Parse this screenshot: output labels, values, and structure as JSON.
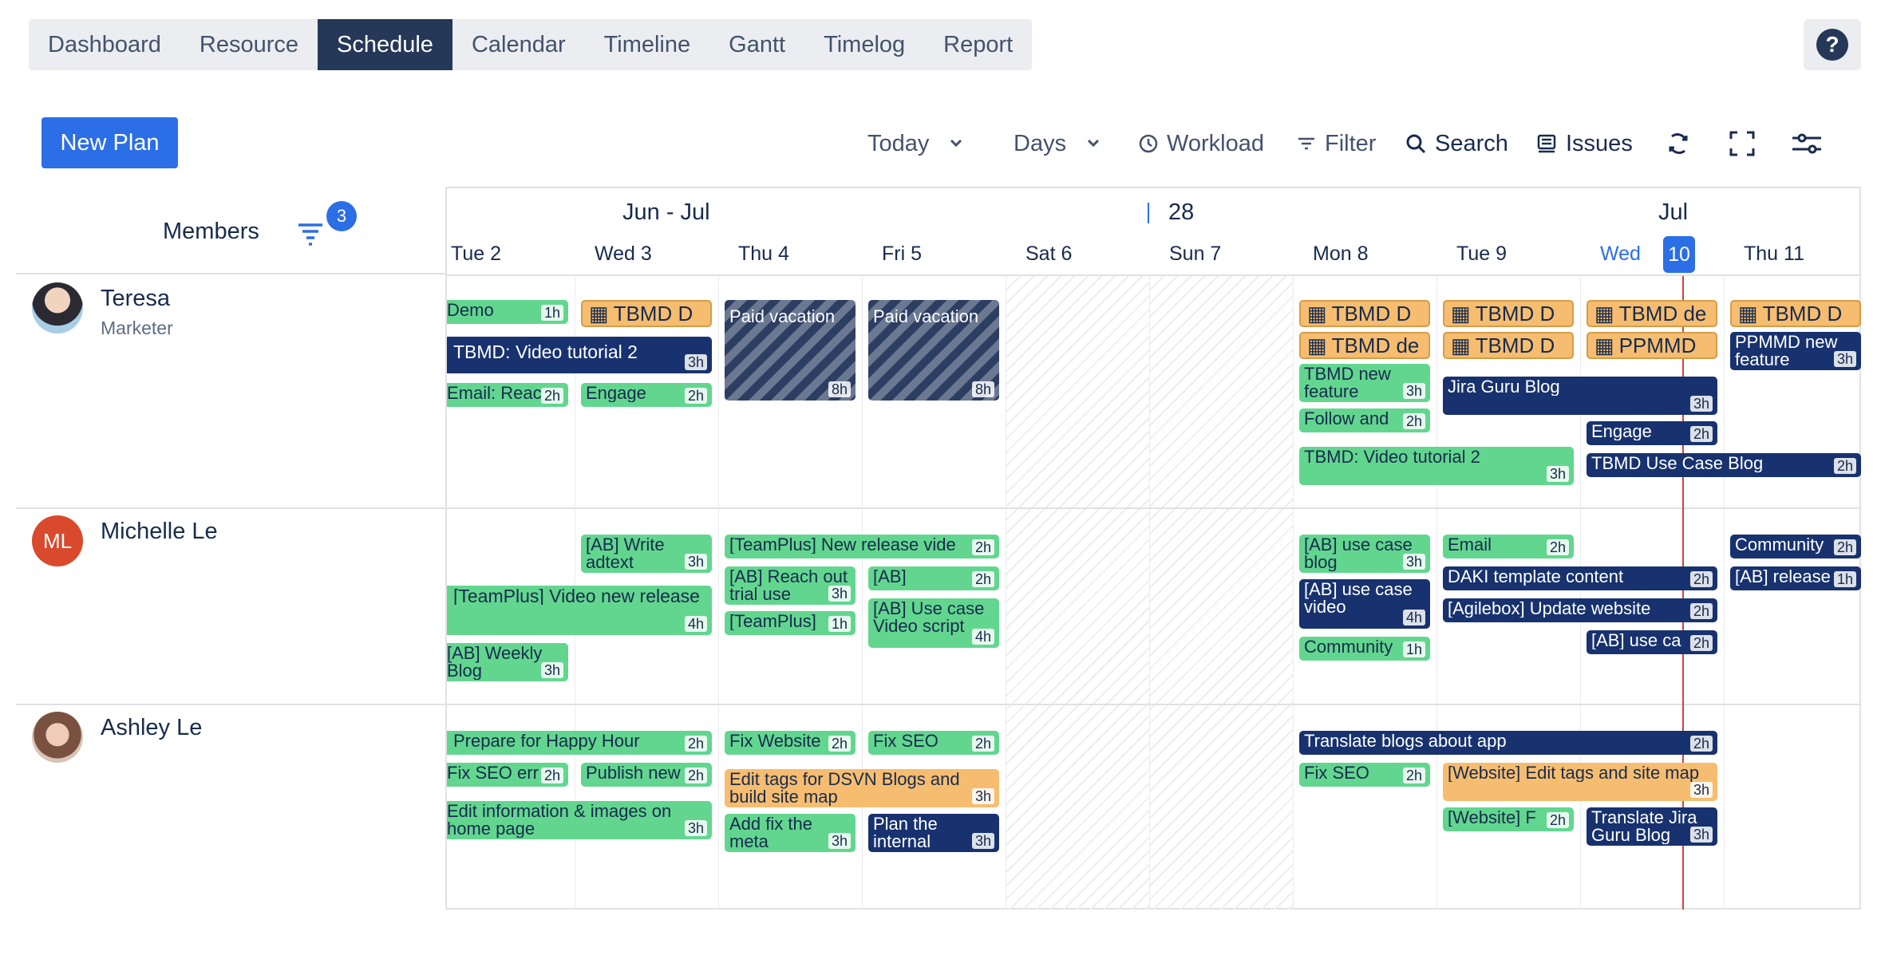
{
  "nav": {
    "tabs": [
      "Dashboard",
      "Resource",
      "Schedule",
      "Calendar",
      "Timeline",
      "Gantt",
      "Timelog",
      "Report"
    ],
    "active_tab": "Schedule",
    "help_label": "?"
  },
  "toolbar": {
    "new_plan": "New Plan",
    "today": "Today",
    "days": "Days",
    "workload": "Workload",
    "filter": "Filter",
    "search": "Search",
    "issues": "Issues"
  },
  "members_panel": {
    "title": "Members",
    "filter_count": "3",
    "members": [
      {
        "name": "Teresa",
        "role": "Marketer",
        "initials": ""
      },
      {
        "name": "Michelle Le",
        "role": "",
        "initials": "ML"
      },
      {
        "name": "Ashley Le",
        "role": "",
        "initials": ""
      }
    ]
  },
  "timeline": {
    "months": [
      "Jun - Jul",
      "28",
      "Jul"
    ],
    "days": [
      "Tue 2",
      "Wed 3",
      "Thu 4",
      "Fri 5",
      "Sat 6",
      "Sun 7",
      "Mon 8",
      "Tue 9",
      "Wed",
      "Thu 11"
    ],
    "today_number": "10"
  },
  "events": {
    "teresa": [
      {
        "title": "Demo",
        "dur": "1h"
      },
      {
        "title": "TBMD D",
        "dur": ""
      },
      {
        "title": "TBMD: Video tutorial 2",
        "dur": "3h"
      },
      {
        "title": "Email: Reac",
        "dur": "2h"
      },
      {
        "title": "Engage",
        "dur": "2h"
      },
      {
        "title": "Paid vacation",
        "dur": "8h"
      },
      {
        "title": "Paid vacation",
        "dur": "8h"
      },
      {
        "title": "TBMD D",
        "dur": ""
      },
      {
        "title": "TBMD de",
        "dur": ""
      },
      {
        "title": "TBMD new feature",
        "dur": "3h"
      },
      {
        "title": "Follow and",
        "dur": "2h"
      },
      {
        "title": "TBMD: Video tutorial 2",
        "dur": "3h"
      },
      {
        "title": "TBMD D",
        "dur": ""
      },
      {
        "title": "TBMD D",
        "dur": ""
      },
      {
        "title": "Jira Guru Blog",
        "dur": "3h"
      },
      {
        "title": "TBMD de",
        "dur": ""
      },
      {
        "title": "PPMMD",
        "dur": ""
      },
      {
        "title": "Engage",
        "dur": "2h"
      },
      {
        "title": "TBMD Use Case Blog",
        "dur": "2h"
      },
      {
        "title": "TBMD D",
        "dur": ""
      },
      {
        "title": "PPMMD new feature",
        "dur": "3h"
      }
    ],
    "michelle": [
      {
        "title": "[AB] Write adtext",
        "dur": "3h"
      },
      {
        "title": "[TeamPlus] New release vide",
        "dur": "2h"
      },
      {
        "title": "[TeamPlus] Video new release",
        "dur": "4h"
      },
      {
        "title": "[AB] Reach out trial use",
        "dur": "3h"
      },
      {
        "title": "[AB]",
        "dur": "2h"
      },
      {
        "title": "[TeamPlus]",
        "dur": "1h"
      },
      {
        "title": "[AB] Use case Video script",
        "dur": "4h"
      },
      {
        "title": "[AB] Weekly Blog",
        "dur": "3h"
      },
      {
        "title": "[AB] use case blog",
        "dur": "3h"
      },
      {
        "title": "[AB] use case video",
        "dur": "4h"
      },
      {
        "title": "Community",
        "dur": "1h"
      },
      {
        "title": "Email",
        "dur": "2h"
      },
      {
        "title": "DAKI template content",
        "dur": "2h"
      },
      {
        "title": "[Agilebox] Update website",
        "dur": "2h"
      },
      {
        "title": "[AB] use ca",
        "dur": "2h"
      },
      {
        "title": "Community",
        "dur": "2h"
      },
      {
        "title": "[AB] release",
        "dur": "1h"
      }
    ],
    "ashley": [
      {
        "title": "Prepare for Happy Hour",
        "dur": "2h"
      },
      {
        "title": "Fix SEO err",
        "dur": "2h"
      },
      {
        "title": "Publish new",
        "dur": "2h"
      },
      {
        "title": "Edit information & images on home page",
        "dur": "3h"
      },
      {
        "title": "Fix Website",
        "dur": "2h"
      },
      {
        "title": "Fix SEO",
        "dur": "2h"
      },
      {
        "title": "Edit tags for DSVN Blogs and build site map",
        "dur": "3h"
      },
      {
        "title": "Add fix the meta",
        "dur": "3h"
      },
      {
        "title": "Plan the internal",
        "dur": "3h"
      },
      {
        "title": "Translate blogs about app",
        "dur": "2h"
      },
      {
        "title": "Fix SEO",
        "dur": "2h"
      },
      {
        "title": "[Website] Edit tags and site map",
        "dur": "3h"
      },
      {
        "title": "[Website] F",
        "dur": "2h"
      },
      {
        "title": "Translate Jira Guru Blog",
        "dur": "3h"
      }
    ]
  },
  "colors": {
    "green": "#62d68f",
    "navy": "#17326e",
    "orange": "#f6bd70",
    "accent": "#2b6ee6",
    "today_line": "#d04437"
  }
}
